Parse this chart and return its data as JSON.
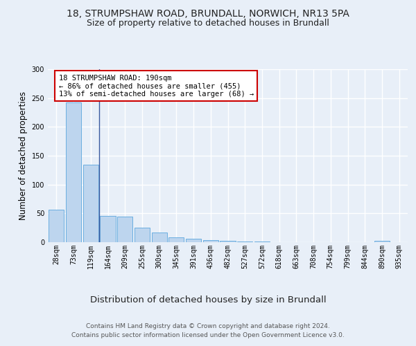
{
  "title1": "18, STRUMPSHAW ROAD, BRUNDALL, NORWICH, NR13 5PA",
  "title2": "Size of property relative to detached houses in Brundall",
  "xlabel": "Distribution of detached houses by size in Brundall",
  "ylabel": "Number of detached properties",
  "categories": [
    "28sqm",
    "73sqm",
    "119sqm",
    "164sqm",
    "209sqm",
    "255sqm",
    "300sqm",
    "345sqm",
    "391sqm",
    "436sqm",
    "482sqm",
    "527sqm",
    "572sqm",
    "618sqm",
    "663sqm",
    "708sqm",
    "754sqm",
    "799sqm",
    "844sqm",
    "890sqm",
    "935sqm"
  ],
  "values": [
    57,
    242,
    135,
    46,
    44,
    25,
    17,
    8,
    6,
    4,
    2,
    1,
    1,
    0,
    0,
    0,
    0,
    0,
    0,
    2,
    0
  ],
  "bar_color": "#bdd5ee",
  "bar_edge_color": "#6aaee0",
  "vline_pos": 2.5,
  "vline_color": "#3a5a9e",
  "annotation_title": "18 STRUMPSHAW ROAD: 190sqm",
  "annotation_line1": "← 86% of detached houses are smaller (455)",
  "annotation_line2": "13% of semi-detached houses are larger (68) →",
  "annotation_box_facecolor": "#ffffff",
  "annotation_box_edgecolor": "#cc0000",
  "ylim": [
    0,
    300
  ],
  "yticks": [
    0,
    50,
    100,
    150,
    200,
    250,
    300
  ],
  "footer1": "Contains HM Land Registry data © Crown copyright and database right 2024.",
  "footer2": "Contains public sector information licensed under the Open Government Licence v3.0.",
  "bg_color": "#e8eff8",
  "grid_color": "#ffffff",
  "title1_fontsize": 10,
  "title2_fontsize": 9,
  "xlabel_fontsize": 9.5,
  "ylabel_fontsize": 8.5,
  "tick_fontsize": 7,
  "footer_fontsize": 6.5,
  "annotation_fontsize": 7.5
}
